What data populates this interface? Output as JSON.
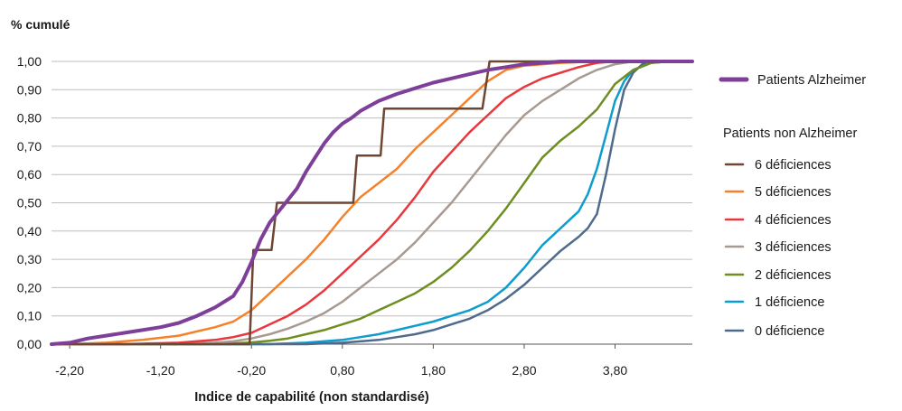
{
  "chart_data": {
    "type": "line",
    "ylabel": "% cumulé",
    "xlabel": "Indice de capabilité (non standardisé)",
    "xlim": [
      -2.4,
      4.65
    ],
    "ylim": [
      0,
      1
    ],
    "x_ticks": [
      -2.2,
      -1.2,
      -0.2,
      0.8,
      1.8,
      2.8,
      3.8
    ],
    "x_tick_labels": [
      "-2,20",
      "-1,20",
      "-0,20",
      "0,80",
      "1,80",
      "2,80",
      "3,80"
    ],
    "y_ticks": [
      0,
      0.1,
      0.2,
      0.3,
      0.4,
      0.5,
      0.6,
      0.7,
      0.8,
      0.9,
      1.0
    ],
    "y_tick_labels": [
      "0,00",
      "0,10",
      "0,20",
      "0,30",
      "0,40",
      "0,50",
      "0,60",
      "0,70",
      "0,80",
      "0,90",
      "1,00"
    ],
    "grid": "horizontal",
    "legend_position": "right",
    "legend_group_title": "Patients non Alzheimer",
    "series": [
      {
        "name": "Patients Alzheimer",
        "color": "#7e3f98",
        "width": 4,
        "points": [
          [
            -2.4,
            0
          ],
          [
            -2.2,
            0.005
          ],
          [
            -2.0,
            0.02
          ],
          [
            -1.8,
            0.03
          ],
          [
            -1.6,
            0.04
          ],
          [
            -1.4,
            0.05
          ],
          [
            -1.2,
            0.06
          ],
          [
            -1.0,
            0.075
          ],
          [
            -0.8,
            0.1
          ],
          [
            -0.6,
            0.13
          ],
          [
            -0.4,
            0.17
          ],
          [
            -0.3,
            0.22
          ],
          [
            -0.2,
            0.29
          ],
          [
            -0.1,
            0.37
          ],
          [
            0.0,
            0.43
          ],
          [
            0.1,
            0.47
          ],
          [
            0.2,
            0.51
          ],
          [
            0.3,
            0.55
          ],
          [
            0.4,
            0.61
          ],
          [
            0.5,
            0.66
          ],
          [
            0.6,
            0.71
          ],
          [
            0.7,
            0.75
          ],
          [
            0.8,
            0.78
          ],
          [
            0.9,
            0.8
          ],
          [
            1.0,
            0.825
          ],
          [
            1.2,
            0.86
          ],
          [
            1.4,
            0.885
          ],
          [
            1.6,
            0.905
          ],
          [
            1.8,
            0.925
          ],
          [
            2.0,
            0.94
          ],
          [
            2.2,
            0.955
          ],
          [
            2.4,
            0.97
          ],
          [
            2.6,
            0.98
          ],
          [
            2.8,
            0.99
          ],
          [
            3.0,
            0.995
          ],
          [
            3.2,
            1.0
          ],
          [
            4.65,
            1.0
          ]
        ]
      },
      {
        "name": "6 déficiences",
        "color": "#6e4632",
        "width": 2.5,
        "points": [
          [
            -2.4,
            0
          ],
          [
            -0.22,
            0
          ],
          [
            -0.18,
            0.333
          ],
          [
            0.02,
            0.333
          ],
          [
            0.08,
            0.5
          ],
          [
            0.92,
            0.5
          ],
          [
            0.96,
            0.667
          ],
          [
            1.22,
            0.667
          ],
          [
            1.26,
            0.833
          ],
          [
            2.34,
            0.833
          ],
          [
            2.42,
            1.0
          ],
          [
            4.65,
            1.0
          ]
        ]
      },
      {
        "name": "5 déficiences",
        "color": "#f5822a",
        "width": 2.5,
        "points": [
          [
            -2.4,
            0
          ],
          [
            -2.2,
            0
          ],
          [
            -1.8,
            0.005
          ],
          [
            -1.4,
            0.015
          ],
          [
            -1.0,
            0.03
          ],
          [
            -0.8,
            0.045
          ],
          [
            -0.6,
            0.06
          ],
          [
            -0.4,
            0.08
          ],
          [
            -0.2,
            0.12
          ],
          [
            0.0,
            0.18
          ],
          [
            0.2,
            0.24
          ],
          [
            0.4,
            0.3
          ],
          [
            0.6,
            0.37
          ],
          [
            0.8,
            0.45
          ],
          [
            1.0,
            0.52
          ],
          [
            1.2,
            0.57
          ],
          [
            1.4,
            0.62
          ],
          [
            1.6,
            0.69
          ],
          [
            1.8,
            0.75
          ],
          [
            2.0,
            0.81
          ],
          [
            2.2,
            0.87
          ],
          [
            2.4,
            0.93
          ],
          [
            2.6,
            0.97
          ],
          [
            2.8,
            0.985
          ],
          [
            3.2,
            0.995
          ],
          [
            3.6,
            1.0
          ],
          [
            4.65,
            1.0
          ]
        ]
      },
      {
        "name": "4 déficiences",
        "color": "#e8383d",
        "width": 2.5,
        "points": [
          [
            -2.4,
            0
          ],
          [
            -1.6,
            0
          ],
          [
            -1.0,
            0.005
          ],
          [
            -0.6,
            0.015
          ],
          [
            -0.4,
            0.025
          ],
          [
            -0.2,
            0.04
          ],
          [
            0.0,
            0.07
          ],
          [
            0.2,
            0.1
          ],
          [
            0.4,
            0.14
          ],
          [
            0.6,
            0.19
          ],
          [
            0.8,
            0.25
          ],
          [
            1.0,
            0.31
          ],
          [
            1.2,
            0.37
          ],
          [
            1.4,
            0.44
          ],
          [
            1.6,
            0.52
          ],
          [
            1.8,
            0.61
          ],
          [
            2.0,
            0.68
          ],
          [
            2.2,
            0.75
          ],
          [
            2.4,
            0.81
          ],
          [
            2.6,
            0.87
          ],
          [
            2.8,
            0.91
          ],
          [
            3.0,
            0.94
          ],
          [
            3.2,
            0.96
          ],
          [
            3.4,
            0.98
          ],
          [
            3.6,
            0.995
          ],
          [
            3.8,
            1.0
          ],
          [
            4.65,
            1.0
          ]
        ]
      },
      {
        "name": "3 déficiences",
        "color": "#a69a92",
        "width": 2.5,
        "points": [
          [
            -2.4,
            0
          ],
          [
            -1.2,
            0
          ],
          [
            -0.6,
            0.005
          ],
          [
            -0.4,
            0.01
          ],
          [
            -0.2,
            0.02
          ],
          [
            0.0,
            0.035
          ],
          [
            0.2,
            0.055
          ],
          [
            0.4,
            0.08
          ],
          [
            0.6,
            0.11
          ],
          [
            0.8,
            0.15
          ],
          [
            1.0,
            0.2
          ],
          [
            1.2,
            0.25
          ],
          [
            1.4,
            0.3
          ],
          [
            1.6,
            0.36
          ],
          [
            1.8,
            0.43
          ],
          [
            2.0,
            0.5
          ],
          [
            2.2,
            0.58
          ],
          [
            2.4,
            0.66
          ],
          [
            2.6,
            0.74
          ],
          [
            2.8,
            0.81
          ],
          [
            3.0,
            0.86
          ],
          [
            3.2,
            0.9
          ],
          [
            3.4,
            0.94
          ],
          [
            3.6,
            0.97
          ],
          [
            3.8,
            0.99
          ],
          [
            4.0,
            1.0
          ],
          [
            4.65,
            1.0
          ]
        ]
      },
      {
        "name": "2 déficiences",
        "color": "#6e8e22",
        "width": 2.5,
        "points": [
          [
            -2.4,
            0
          ],
          [
            -0.8,
            0
          ],
          [
            -0.4,
            0.003
          ],
          [
            -0.2,
            0.006
          ],
          [
            0.0,
            0.012
          ],
          [
            0.2,
            0.02
          ],
          [
            0.4,
            0.035
          ],
          [
            0.6,
            0.05
          ],
          [
            0.8,
            0.07
          ],
          [
            1.0,
            0.09
          ],
          [
            1.2,
            0.12
          ],
          [
            1.4,
            0.15
          ],
          [
            1.6,
            0.18
          ],
          [
            1.8,
            0.22
          ],
          [
            2.0,
            0.27
          ],
          [
            2.2,
            0.33
          ],
          [
            2.4,
            0.4
          ],
          [
            2.6,
            0.48
          ],
          [
            2.8,
            0.57
          ],
          [
            3.0,
            0.66
          ],
          [
            3.2,
            0.72
          ],
          [
            3.4,
            0.77
          ],
          [
            3.6,
            0.83
          ],
          [
            3.8,
            0.92
          ],
          [
            4.0,
            0.97
          ],
          [
            4.2,
            0.995
          ],
          [
            4.4,
            1.0
          ],
          [
            4.65,
            1.0
          ]
        ]
      },
      {
        "name": "1 déficience",
        "color": "#0d9ccf",
        "width": 2.5,
        "points": [
          [
            -2.4,
            0
          ],
          [
            0.0,
            0
          ],
          [
            0.4,
            0.005
          ],
          [
            0.8,
            0.015
          ],
          [
            1.0,
            0.025
          ],
          [
            1.2,
            0.035
          ],
          [
            1.4,
            0.05
          ],
          [
            1.6,
            0.065
          ],
          [
            1.8,
            0.08
          ],
          [
            2.0,
            0.1
          ],
          [
            2.2,
            0.12
          ],
          [
            2.4,
            0.15
          ],
          [
            2.6,
            0.2
          ],
          [
            2.8,
            0.27
          ],
          [
            3.0,
            0.35
          ],
          [
            3.2,
            0.41
          ],
          [
            3.4,
            0.47
          ],
          [
            3.5,
            0.53
          ],
          [
            3.6,
            0.62
          ],
          [
            3.7,
            0.74
          ],
          [
            3.8,
            0.86
          ],
          [
            3.9,
            0.93
          ],
          [
            4.0,
            0.97
          ],
          [
            4.2,
            0.995
          ],
          [
            4.4,
            1.0
          ],
          [
            4.65,
            1.0
          ]
        ]
      },
      {
        "name": "0 déficience",
        "color": "#4f6b8c",
        "width": 2.5,
        "points": [
          [
            -2.4,
            0
          ],
          [
            0.4,
            0
          ],
          [
            0.8,
            0.005
          ],
          [
            1.0,
            0.01
          ],
          [
            1.2,
            0.015
          ],
          [
            1.4,
            0.025
          ],
          [
            1.6,
            0.035
          ],
          [
            1.8,
            0.05
          ],
          [
            2.0,
            0.07
          ],
          [
            2.2,
            0.09
          ],
          [
            2.4,
            0.12
          ],
          [
            2.6,
            0.16
          ],
          [
            2.8,
            0.21
          ],
          [
            3.0,
            0.27
          ],
          [
            3.2,
            0.33
          ],
          [
            3.4,
            0.38
          ],
          [
            3.5,
            0.41
          ],
          [
            3.6,
            0.46
          ],
          [
            3.7,
            0.6
          ],
          [
            3.8,
            0.76
          ],
          [
            3.9,
            0.9
          ],
          [
            4.0,
            0.96
          ],
          [
            4.1,
            0.99
          ],
          [
            4.2,
            1.0
          ],
          [
            4.65,
            1.0
          ]
        ]
      }
    ]
  }
}
